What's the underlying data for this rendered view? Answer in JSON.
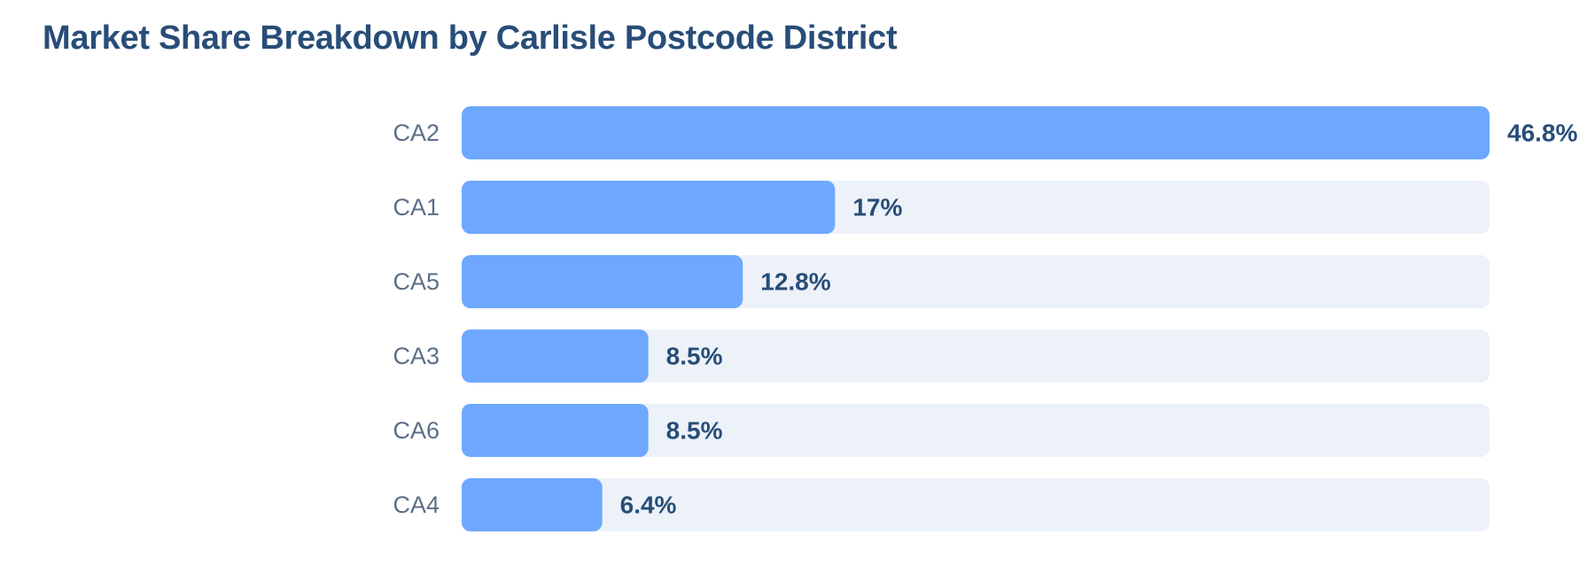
{
  "chart_data": {
    "type": "bar",
    "orientation": "horizontal",
    "title": "Market Share Breakdown by Carlisle Postcode District",
    "xlabel": "",
    "ylabel": "",
    "categories": [
      "CA2",
      "CA1",
      "CA5",
      "CA3",
      "CA6",
      "CA4"
    ],
    "values": [
      46.8,
      17,
      12.8,
      8.5,
      8.5,
      6.4
    ],
    "value_labels": [
      "46.8%",
      "17%",
      "12.8%",
      "8.5%",
      "8.5%",
      "6.4%"
    ],
    "xlim": [
      0,
      46.8
    ],
    "grid": false,
    "legend": "none",
    "colors": {
      "bar": "#6ea8fe",
      "track": "#edf2f9",
      "title": "#284d78",
      "category_label": "#5d6f86",
      "value_label": "#284d78"
    }
  }
}
